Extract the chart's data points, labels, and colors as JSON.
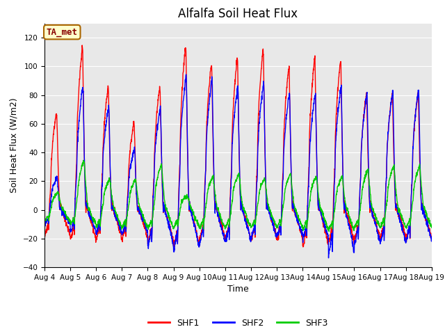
{
  "title": "Alfalfa Soil Heat Flux",
  "xlabel": "Time",
  "ylabel": "Soil Heat Flux (W/m2)",
  "ylim": [
    -40,
    130
  ],
  "yticks": [
    -40,
    -20,
    0,
    20,
    40,
    60,
    80,
    100,
    120
  ],
  "num_days": 15,
  "points_per_day": 144,
  "shf1_color": "#ff0000",
  "shf2_color": "#0000ff",
  "shf3_color": "#00cc00",
  "annotation_text": "TA_met",
  "annotation_color": "#880000",
  "annotation_bg": "#ffffcc",
  "annotation_edge": "#aa6600",
  "bg_color": "#e8e8e8",
  "date_labels": [
    "Aug 4",
    "Aug 5",
    "Aug 6",
    "Aug 7",
    "Aug 8",
    "Aug 9",
    "Aug 10",
    "Aug 11",
    "Aug 12",
    "Aug 13",
    "Aug 14",
    "Aug 15",
    "Aug 16",
    "Aug 17",
    "Aug 18",
    "Aug 19"
  ],
  "title_fontsize": 12,
  "label_fontsize": 9,
  "tick_fontsize": 7.5,
  "legend_fontsize": 9,
  "line_width": 1.0,
  "shf1_peaks": [
    67,
    113,
    85,
    60,
    85,
    113,
    101,
    105,
    111,
    99,
    105,
    103,
    80,
    80,
    81
  ],
  "shf2_peaks": [
    22,
    85,
    71,
    42,
    71,
    93,
    91,
    85,
    88,
    80,
    80,
    85,
    80,
    82,
    83
  ],
  "shf3_peaks": [
    12,
    34,
    21,
    21,
    31,
    10,
    23,
    25,
    22,
    25,
    23,
    23,
    28,
    30,
    30
  ],
  "shf1_troughs": [
    -18,
    -20,
    -20,
    -20,
    -22,
    -25,
    -20,
    -20,
    -20,
    -20,
    -25,
    -22,
    -20,
    -20,
    -20
  ],
  "shf2_troughs": [
    -10,
    -15,
    -16,
    -16,
    -25,
    -27,
    -23,
    -22,
    -19,
    -18,
    -20,
    -30,
    -23,
    -23,
    -22
  ],
  "shf3_troughs": [
    -8,
    -10,
    -12,
    -12,
    -13,
    -12,
    -13,
    -12,
    -12,
    -12,
    -14,
    -14,
    -12,
    -12,
    -12
  ]
}
